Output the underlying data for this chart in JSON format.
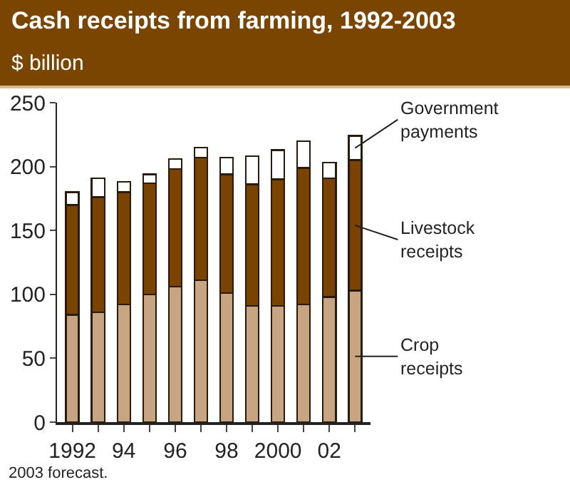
{
  "chart_data": {
    "type": "bar",
    "title": "Cash receipts from farming, 1992-2003",
    "ylabel": "$ billion",
    "stacked": true,
    "legend": false,
    "grid": false,
    "categories": [
      "1992",
      null,
      "94",
      null,
      "96",
      null,
      "98",
      null,
      "2000",
      null,
      "02",
      null
    ],
    "series": [
      {
        "name": "Crop receipts",
        "color": "#c8a582",
        "values": [
          84,
          86,
          92,
          100,
          106,
          111,
          101,
          91,
          91,
          92,
          98,
          103
        ]
      },
      {
        "name": "Livestock receipts",
        "color": "#7a4300",
        "values": [
          86,
          90,
          88,
          87,
          92,
          96,
          93,
          95,
          99,
          107,
          93,
          102
        ]
      },
      {
        "name": "Government payments",
        "color": "#ffffff",
        "values": [
          10,
          15,
          8,
          7,
          8,
          8,
          13,
          22,
          23,
          21,
          12,
          19
        ]
      }
    ],
    "ylim": [
      0,
      250
    ],
    "yticks": [
      0,
      50,
      100,
      150,
      200,
      250
    ],
    "annotations": [
      "2003 forecast."
    ]
  }
}
